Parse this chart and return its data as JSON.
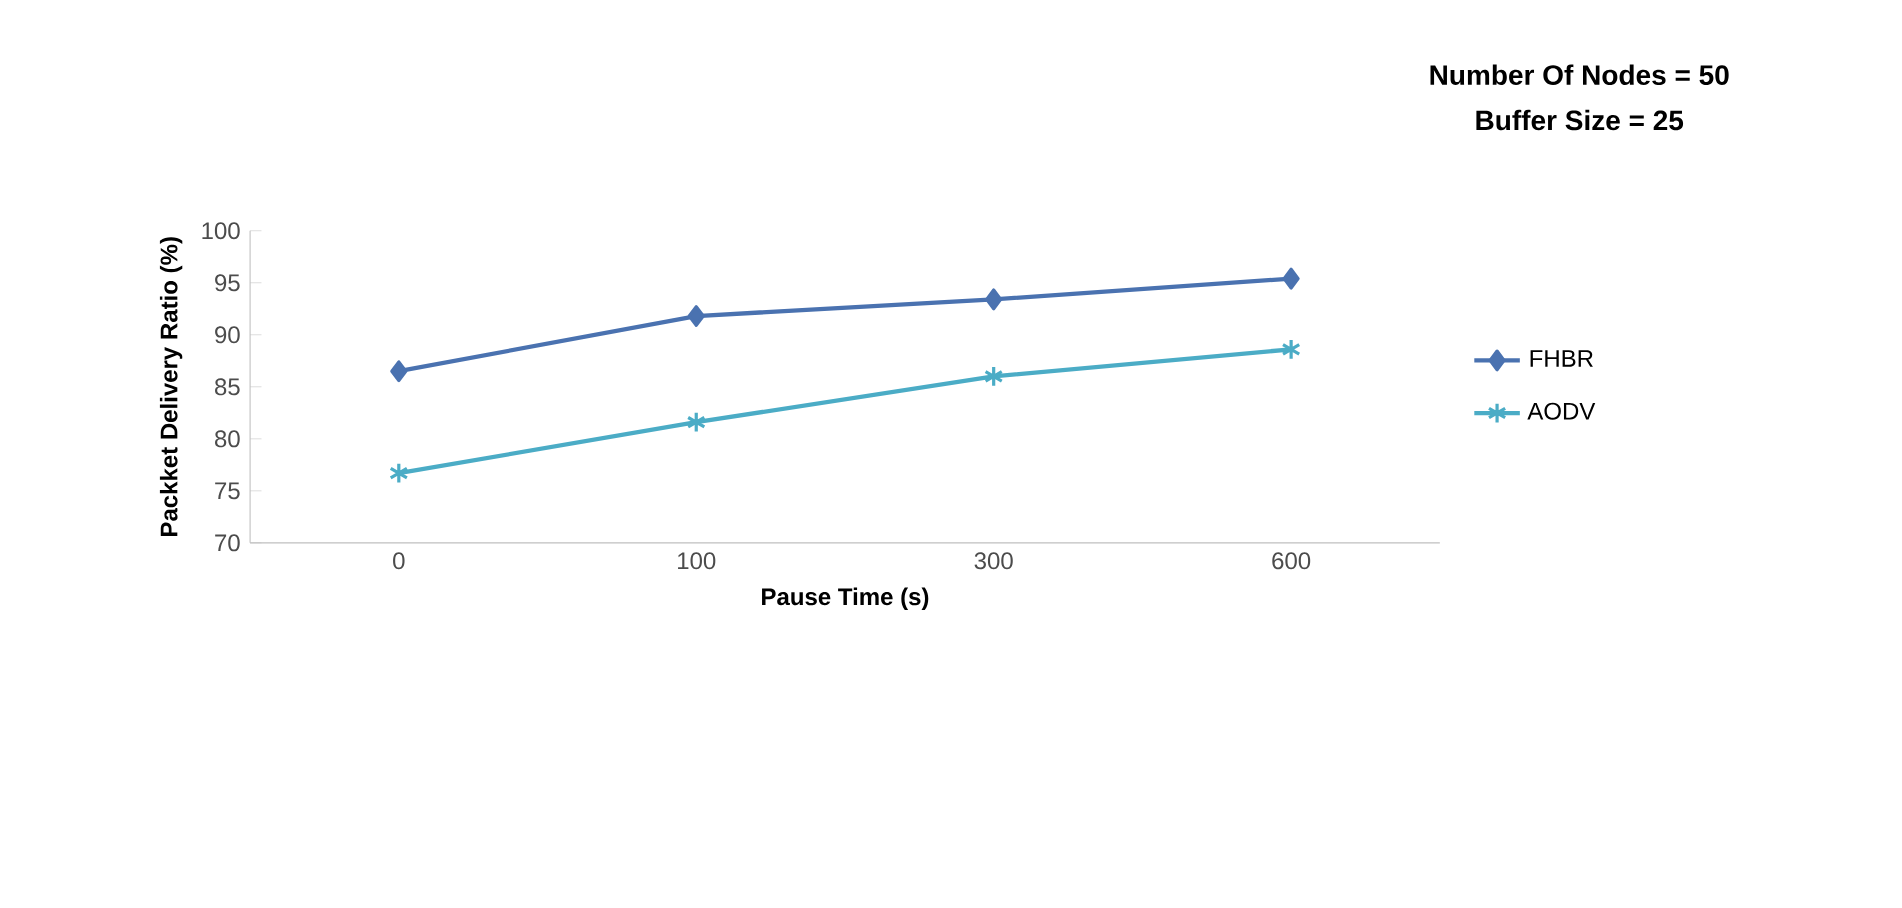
{
  "chart_data": {
    "type": "line",
    "annotations": [
      "**Number Of Nodes = 50**",
      "**Buffer Size = 25**"
    ],
    "xlabel": "Pause Time (s)",
    "ylabel": "Packket Delivery Ratio (%)",
    "categories": [
      "0",
      "100",
      "300",
      "600"
    ],
    "series": [
      {
        "name": "FHBR",
        "color": "#4a72b0",
        "marker": "diamond",
        "values": [
          86.5,
          91.8,
          93.4,
          95.4
        ]
      },
      {
        "name": "AODV",
        "color": "#4bacc6",
        "marker": "cross",
        "values": [
          76.7,
          81.6,
          86.0,
          88.6
        ]
      }
    ],
    "ylim": [
      70,
      100
    ],
    "yticks": [
      70,
      75,
      80,
      85,
      90,
      95,
      100
    ],
    "legend": "right",
    "grid": false,
    "line_style": "solid"
  }
}
